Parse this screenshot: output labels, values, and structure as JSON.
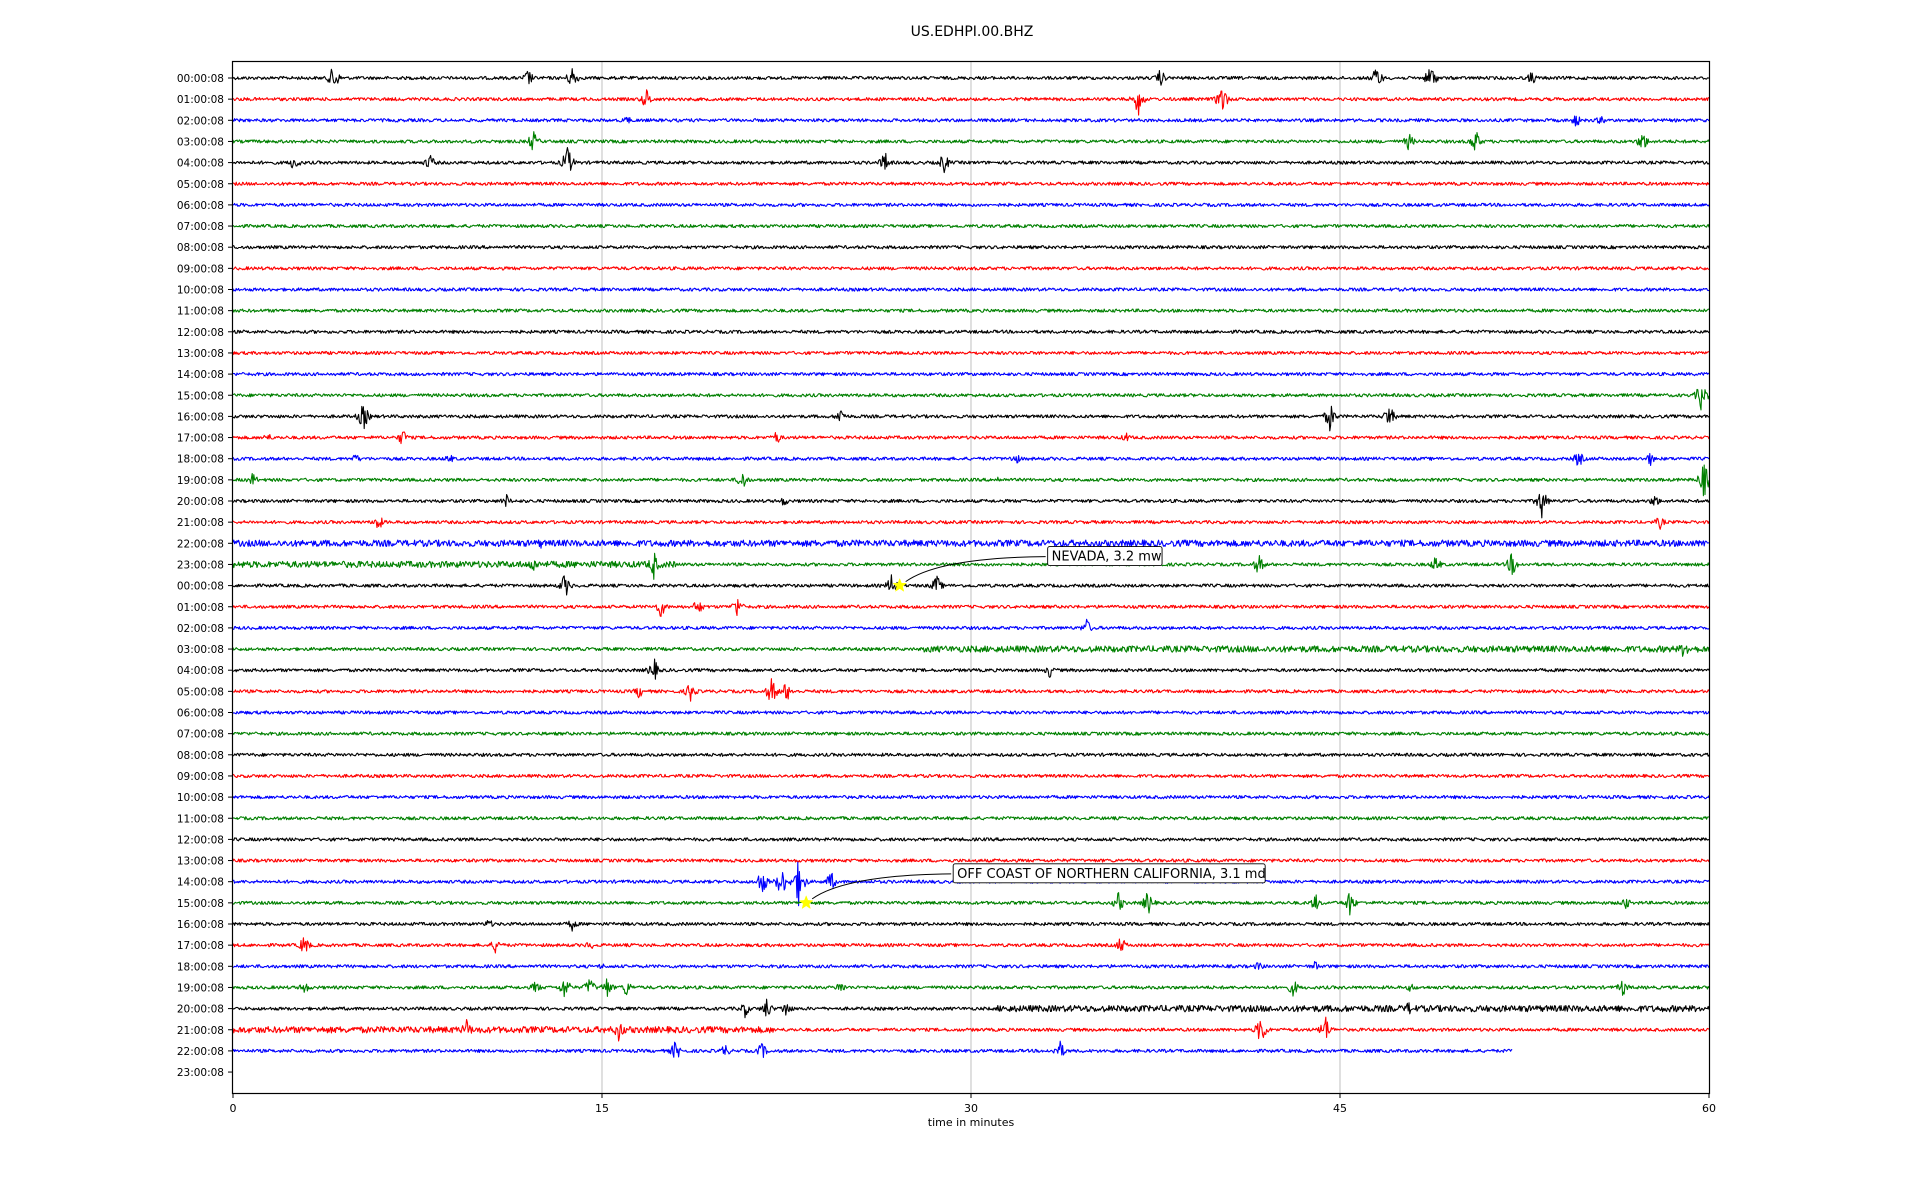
{
  "chart_data": {
    "type": "line",
    "title": "US.EDHPI.00.BHZ",
    "xlabel": "time in minutes",
    "ylabel": "",
    "xlim": [
      0,
      60
    ],
    "xticks": [
      "0",
      "15",
      "30",
      "45",
      "60"
    ],
    "grid": "vertical lines at 15, 30, 45",
    "row_labels": [
      "00:00:08",
      "01:00:08",
      "02:00:08",
      "03:00:08",
      "04:00:08",
      "05:00:08",
      "06:00:08",
      "07:00:08",
      "08:00:08",
      "09:00:08",
      "10:00:08",
      "11:00:08",
      "12:00:08",
      "13:00:08",
      "14:00:08",
      "15:00:08",
      "16:00:08",
      "17:00:08",
      "18:00:08",
      "19:00:08",
      "20:00:08",
      "21:00:08",
      "22:00:08",
      "23:00:08",
      "00:00:08",
      "01:00:08",
      "02:00:08",
      "03:00:08",
      "04:00:08",
      "05:00:08",
      "06:00:08",
      "07:00:08",
      "08:00:08",
      "09:00:08",
      "10:00:08",
      "11:00:08",
      "12:00:08",
      "13:00:08",
      "14:00:08",
      "15:00:08",
      "16:00:08",
      "17:00:08",
      "18:00:08",
      "19:00:08",
      "20:00:08",
      "21:00:08",
      "22:00:08",
      "23:00:08"
    ],
    "trace_colors": [
      "#000000",
      "#ff0000",
      "#0000ff",
      "#008000"
    ],
    "last_trace_end_minute": 52,
    "events": [
      {
        "label": "NEVADA, 3.2 mw",
        "row": 24,
        "minute": 27.1,
        "marker": "star",
        "marker_color": "#ffff00"
      },
      {
        "label": "OFF COAST OF NORTHERN CALIFORNIA, 3.1 md",
        "row": 39,
        "minute": 23.3,
        "marker": "star",
        "marker_color": "#ffff00"
      }
    ],
    "bursts": [
      [
        0,
        4.1,
        16
      ],
      [
        0,
        12,
        10
      ],
      [
        0,
        13.8,
        14
      ],
      [
        0,
        37.7,
        10
      ],
      [
        0,
        46.5,
        14
      ],
      [
        0,
        48.7,
        16
      ],
      [
        0,
        52.8,
        8
      ],
      [
        1,
        16.8,
        12
      ],
      [
        1,
        36.8,
        18
      ],
      [
        1,
        40.2,
        18
      ],
      [
        2,
        16,
        6
      ],
      [
        2,
        54.6,
        8
      ],
      [
        2,
        55.6,
        6
      ],
      [
        3,
        12.2,
        12
      ],
      [
        3,
        47.8,
        10
      ],
      [
        3,
        50.5,
        14
      ],
      [
        3,
        57.3,
        12
      ],
      [
        4,
        2.5,
        10
      ],
      [
        4,
        8,
        10
      ],
      [
        4,
        13.6,
        18
      ],
      [
        4,
        26.5,
        12
      ],
      [
        4,
        28.9,
        12
      ],
      [
        15,
        59.7,
        18
      ],
      [
        16,
        5.3,
        16
      ],
      [
        16,
        24.7,
        10
      ],
      [
        16,
        44.6,
        16
      ],
      [
        16,
        47,
        14
      ],
      [
        17,
        1.4,
        6
      ],
      [
        17,
        6.9,
        10
      ],
      [
        17,
        22.1,
        8
      ],
      [
        17,
        36.3,
        6
      ],
      [
        18,
        5,
        6
      ],
      [
        18,
        8.8,
        6
      ],
      [
        18,
        31.8,
        8
      ],
      [
        18,
        54.7,
        10
      ],
      [
        18,
        57.6,
        8
      ],
      [
        19,
        0.8,
        8
      ],
      [
        19,
        20.7,
        12
      ],
      [
        19,
        31.1,
        4
      ],
      [
        19,
        59.8,
        20
      ],
      [
        20,
        11.1,
        8
      ],
      [
        20,
        22.4,
        6
      ],
      [
        20,
        53.2,
        18
      ],
      [
        20,
        57.8,
        8
      ],
      [
        21,
        5.9,
        10
      ],
      [
        21,
        58,
        8
      ],
      [
        22,
        12.5,
        6
      ],
      [
        23,
        12.2,
        10
      ],
      [
        23,
        17.1,
        16
      ],
      [
        23,
        41.7,
        12
      ],
      [
        23,
        48.9,
        10
      ],
      [
        23,
        52,
        14
      ],
      [
        24,
        13.5,
        14
      ],
      [
        24,
        26.8,
        14
      ],
      [
        24,
        28.6,
        12
      ],
      [
        25,
        17.4,
        12
      ],
      [
        25,
        18.9,
        10
      ],
      [
        25,
        20.5,
        12
      ],
      [
        26,
        34.7,
        10
      ],
      [
        27,
        59,
        12
      ],
      [
        28,
        17.1,
        14
      ],
      [
        28,
        33.2,
        8
      ],
      [
        29,
        16.5,
        8
      ],
      [
        29,
        18.6,
        12
      ],
      [
        29,
        21.9,
        16
      ],
      [
        29,
        22.5,
        12
      ],
      [
        38,
        21.5,
        16
      ],
      [
        38,
        22.3,
        18
      ],
      [
        38,
        23,
        26
      ],
      [
        38,
        24.3,
        12
      ],
      [
        39,
        36,
        12
      ],
      [
        39,
        37.2,
        14
      ],
      [
        39,
        44,
        10
      ],
      [
        39,
        45.4,
        14
      ],
      [
        39,
        56.6,
        8
      ],
      [
        40,
        10.4,
        6
      ],
      [
        40,
        13.8,
        8
      ],
      [
        41,
        2.9,
        12
      ],
      [
        41,
        10.7,
        10
      ],
      [
        41,
        14.5,
        6
      ],
      [
        41,
        36.1,
        10
      ],
      [
        42,
        15,
        4
      ],
      [
        42,
        41.7,
        6
      ],
      [
        42,
        44,
        6
      ],
      [
        43,
        2.9,
        8
      ],
      [
        43,
        12.3,
        8
      ],
      [
        43,
        13.5,
        14
      ],
      [
        43,
        14.5,
        12
      ],
      [
        43,
        15.2,
        12
      ],
      [
        43,
        16,
        10
      ],
      [
        43,
        24.7,
        8
      ],
      [
        43,
        43.1,
        10
      ],
      [
        43,
        47.9,
        6
      ],
      [
        43,
        56.5,
        10
      ],
      [
        44,
        20.8,
        10
      ],
      [
        44,
        21.7,
        12
      ],
      [
        44,
        22.5,
        10
      ],
      [
        44,
        47.8,
        8
      ],
      [
        45,
        9.5,
        12
      ],
      [
        45,
        15.7,
        14
      ],
      [
        45,
        41.8,
        18
      ],
      [
        45,
        44.4,
        16
      ],
      [
        46,
        18,
        12
      ],
      [
        46,
        20,
        8
      ],
      [
        46,
        21.5,
        10
      ],
      [
        46,
        33.6,
        12
      ]
    ],
    "noisy_segments": [
      [
        22,
        0,
        60
      ],
      [
        23,
        0,
        18
      ],
      [
        45,
        0,
        22
      ],
      [
        44,
        31,
        60
      ],
      [
        27,
        28,
        60
      ]
    ]
  }
}
